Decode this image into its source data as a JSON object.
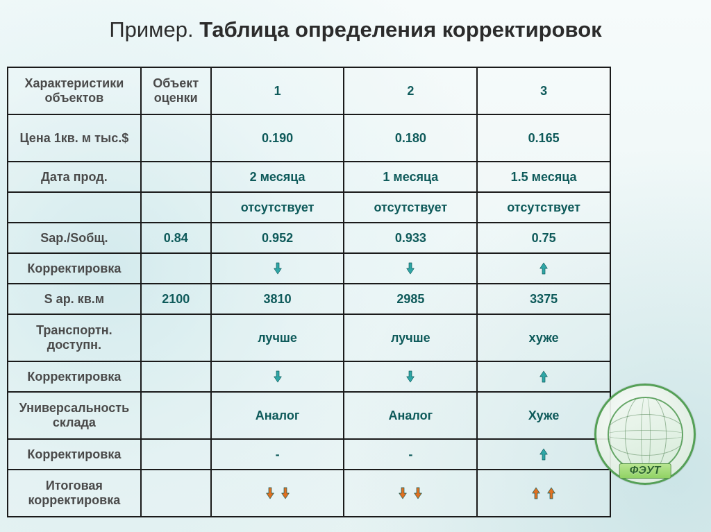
{
  "title_prefix": "Пример. ",
  "title_main": "Таблица определения корректировок",
  "columns": [
    "Характеристики объектов",
    "Объект оценки",
    "1",
    "2",
    "3"
  ],
  "rows": {
    "price": {
      "label": "Цена 1кв. м тыс.$",
      "obj": "",
      "c1": "0.190",
      "c2": "0.180",
      "c3": "0.165"
    },
    "date": {
      "label": "Дата прод.",
      "obj": "",
      "c1": "2 месяца",
      "c2": "1 месяца",
      "c3": "1.5 месяца"
    },
    "absent": {
      "label": "",
      "obj": "",
      "c1": "отсутствует",
      "c2": "отсутствует",
      "c3": "отсутствует"
    },
    "sap": {
      "label": "Sар./Sобщ.",
      "obj": "0.84",
      "c1": "0.952",
      "c2": "0.933",
      "c3": "0.75"
    },
    "corr1": {
      "label": "Корректировка",
      "arrows": [
        "down",
        "down",
        "up"
      ]
    },
    "sarea": {
      "label": "S ар.  кв.м",
      "obj": "2100",
      "c1": "3810",
      "c2": "2985",
      "c3": "3375"
    },
    "transport": {
      "label": "Транспортн. доступн.",
      "obj": "",
      "c1": "лучше",
      "c2": "лучше",
      "c3": "хуже"
    },
    "corr2": {
      "label": "Корректировка",
      "arrows": [
        "down",
        "down",
        "up"
      ]
    },
    "universal": {
      "label": "Универсальность склада",
      "obj": "",
      "c1": "Аналог",
      "c2": "Аналог",
      "c3": "Хуже"
    },
    "corr3": {
      "label": "Корректировка",
      "obj": "",
      "c1": "-",
      "c2": "-",
      "arrows3": "up"
    },
    "final": {
      "label": "Итоговая корректировка",
      "arrows_double": [
        [
          "down-orange",
          "down-orange"
        ],
        [
          "down-orange",
          "down-orange"
        ],
        [
          "up-orange",
          "up-orange"
        ]
      ]
    }
  },
  "arrow_colors": {
    "up": "#2fa6a6",
    "down": "#2fa6a6",
    "up-orange": "#e07020",
    "down-orange": "#e07020"
  },
  "logo_text": "ФЭУТ"
}
